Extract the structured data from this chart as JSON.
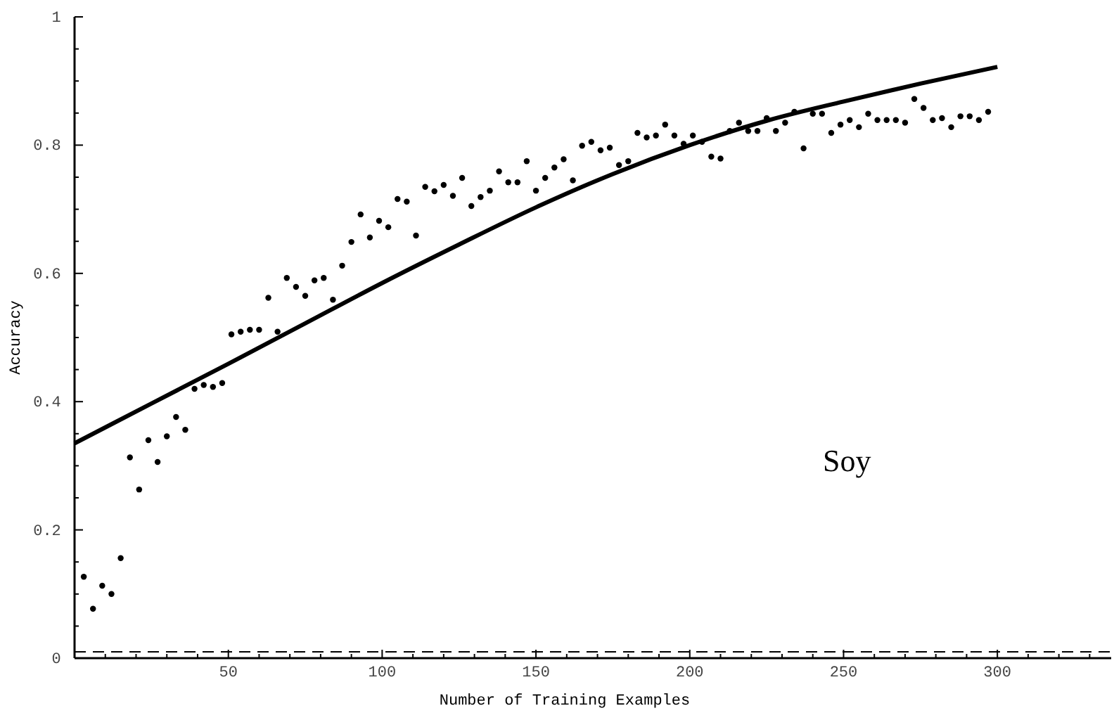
{
  "chart_data": {
    "type": "scatter",
    "xlabel": "Number of Training Examples",
    "ylabel": "Accuracy",
    "annotations": [
      "Soy"
    ],
    "xlim": [
      0,
      337
    ],
    "ylim": [
      0,
      1
    ],
    "xticks": [
      {
        "value": 10,
        "label": null
      },
      {
        "value": 20,
        "label": null
      },
      {
        "value": 30,
        "label": null
      },
      {
        "value": 40,
        "label": null
      },
      50,
      {
        "value": 60,
        "label": null
      },
      {
        "value": 70,
        "label": null
      },
      {
        "value": 80,
        "label": null
      },
      {
        "value": 90,
        "label": null
      },
      100,
      {
        "value": 110,
        "label": null
      },
      {
        "value": 120,
        "label": null
      },
      {
        "value": 130,
        "label": null
      },
      {
        "value": 140,
        "label": null
      },
      150,
      {
        "value": 160,
        "label": null
      },
      {
        "value": 170,
        "label": null
      },
      {
        "value": 180,
        "label": null
      },
      {
        "value": 190,
        "label": null
      },
      200,
      {
        "value": 210,
        "label": null
      },
      {
        "value": 220,
        "label": null
      },
      {
        "value": 230,
        "label": null
      },
      {
        "value": 240,
        "label": null
      },
      250,
      {
        "value": 260,
        "label": null
      },
      {
        "value": 270,
        "label": null
      },
      {
        "value": 280,
        "label": null
      },
      {
        "value": 290,
        "label": null
      },
      300,
      {
        "value": 310,
        "label": null
      },
      {
        "value": 320,
        "label": null
      },
      {
        "value": 330,
        "label": null
      }
    ],
    "yticks": [
      0,
      {
        "value": 0.05,
        "label": null
      },
      {
        "value": 0.1,
        "label": null
      },
      {
        "value": 0.15,
        "label": null
      },
      0.2,
      {
        "value": 0.25,
        "label": null
      },
      {
        "value": 0.3,
        "label": null
      },
      {
        "value": 0.35,
        "label": null
      },
      0.4,
      {
        "value": 0.45,
        "label": null
      },
      {
        "value": 0.5,
        "label": null
      },
      {
        "value": 0.55,
        "label": null
      },
      0.6,
      {
        "value": 0.65,
        "label": null
      },
      {
        "value": 0.7,
        "label": null
      },
      {
        "value": 0.75,
        "label": null
      },
      0.8,
      {
        "value": 0.85,
        "label": null
      },
      {
        "value": 0.9,
        "label": null
      },
      {
        "value": 0.95,
        "label": null
      },
      1
    ],
    "grid": false,
    "ref_lines": [
      {
        "axis": "y",
        "value": 0.01,
        "line_style": "dashed",
        "color": "#000000"
      }
    ],
    "series": [
      {
        "marker": "circle",
        "color": "#000000",
        "x": [
          3,
          6,
          9,
          12,
          15,
          18,
          21,
          24,
          27,
          30,
          33,
          36,
          39,
          42,
          45,
          48,
          51,
          54,
          57,
          60,
          63,
          66,
          69,
          72,
          75,
          78,
          81,
          84,
          87,
          90,
          93,
          96,
          99,
          102,
          105,
          108,
          111,
          114,
          117,
          120,
          123,
          126,
          129,
          132,
          135,
          138,
          141,
          144,
          147,
          150,
          153,
          156,
          159,
          162,
          165,
          168,
          171,
          174,
          177,
          180,
          183,
          186,
          189,
          192,
          195,
          198,
          201,
          204,
          207,
          210,
          213,
          216,
          219,
          222,
          225,
          228,
          231,
          234,
          237,
          240,
          243,
          246,
          249,
          252,
          255,
          258,
          261,
          264,
          267,
          270,
          273,
          276,
          279,
          282,
          285,
          288,
          291,
          294,
          297
        ],
        "values": [
          0.127,
          0.077,
          0.113,
          0.1,
          0.156,
          0.313,
          0.263,
          0.34,
          0.306,
          0.346,
          0.376,
          0.356,
          0.42,
          0.426,
          0.423,
          0.429,
          0.505,
          0.509,
          0.512,
          0.512,
          0.562,
          0.509,
          0.593,
          0.579,
          0.565,
          0.589,
          0.593,
          0.559,
          0.612,
          0.649,
          0.692,
          0.656,
          0.682,
          0.672,
          0.716,
          0.712,
          0.659,
          0.735,
          0.728,
          0.738,
          0.721,
          0.749,
          0.705,
          0.719,
          0.729,
          0.759,
          0.742,
          0.742,
          0.775,
          0.729,
          0.749,
          0.765,
          0.778,
          0.745,
          0.799,
          0.805,
          0.792,
          0.796,
          0.769,
          0.775,
          0.819,
          0.812,
          0.815,
          0.832,
          0.815,
          0.802,
          0.815,
          0.805,
          0.782,
          0.779,
          0.822,
          0.835,
          0.822,
          0.822,
          0.842,
          0.822,
          0.835,
          0.852,
          0.795,
          0.849,
          0.849,
          0.819,
          0.832,
          0.839,
          0.828,
          0.849,
          0.839,
          0.839,
          0.839,
          0.835,
          0.872,
          0.858,
          0.839,
          0.842,
          0.828,
          0.845,
          0.845,
          0.839,
          0.852
        ]
      },
      {
        "type": "line",
        "marker": "none",
        "line_style": "solid",
        "color": "#000000",
        "x": [
          0,
          25,
          50,
          75,
          100,
          125,
          150,
          175,
          200,
          225,
          250,
          275,
          300
        ],
        "values": [
          0.335,
          0.397,
          0.459,
          0.522,
          0.585,
          0.645,
          0.703,
          0.755,
          0.8,
          0.838,
          0.868,
          0.896,
          0.922
        ]
      }
    ]
  }
}
